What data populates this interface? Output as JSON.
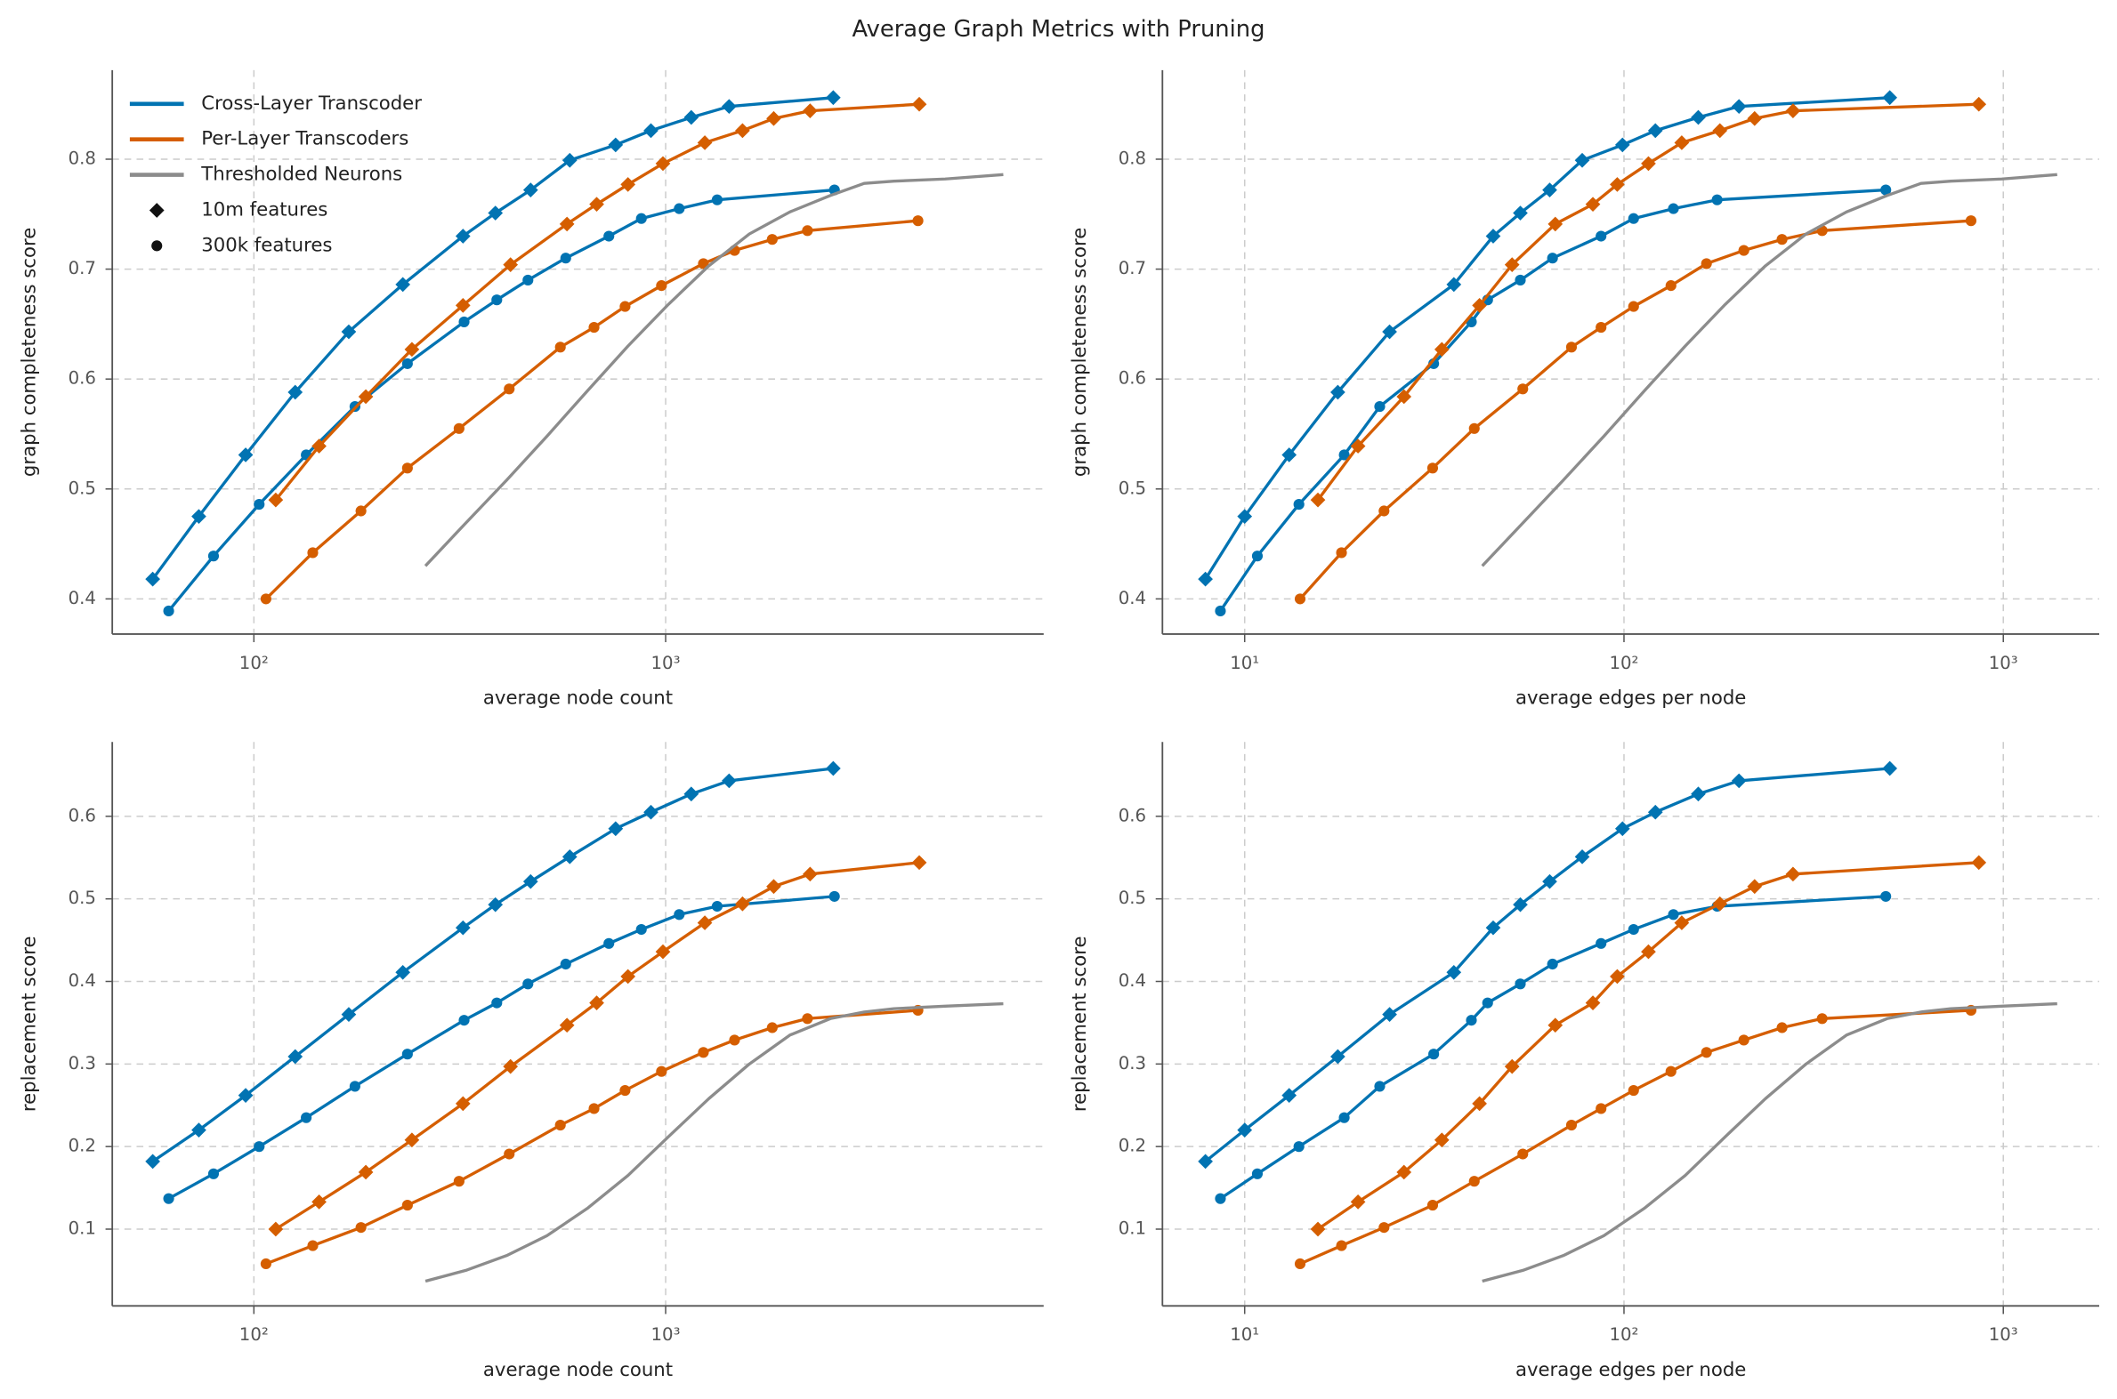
{
  "title": "Average Graph Metrics with Pruning",
  "chart_data": [
    {
      "type": "line",
      "xlabel": "average node count",
      "ylabel": "graph completeness score",
      "xscale": "log",
      "xlim": [
        45.3,
        8280
      ],
      "ylim": [
        0.368,
        0.881
      ],
      "xticks": [
        {
          "value": 100,
          "label": "10²"
        },
        {
          "value": 1000,
          "label": "10³"
        }
      ],
      "yticks": [
        0.4,
        0.5,
        0.6,
        0.7,
        0.8
      ],
      "grid": true,
      "legend": {
        "loc": "upper left",
        "entries": [
          {
            "label": "Cross-Layer Transcoder",
            "color": "#0173b2"
          },
          {
            "label": "Per-Layer Transcoders",
            "color": "#d55e00"
          },
          {
            "label": "Thresholded Neurons",
            "color": "#8c8c8c"
          },
          {
            "label": "10m features",
            "marker": "diamond"
          },
          {
            "label": "300k features",
            "marker": "circle"
          }
        ]
      },
      "series": [
        {
          "color": "#0173b2",
          "marker": "diamond",
          "x": [
            56.8,
            73.5,
            95.5,
            126,
            170,
            230,
            322,
            386,
            470,
            585,
            756,
            921,
            1154,
            1426,
            2553
          ],
          "values": [
            0.418,
            0.475,
            0.531,
            0.588,
            0.643,
            0.686,
            0.73,
            0.751,
            0.772,
            0.799,
            0.813,
            0.826,
            0.838,
            0.848,
            0.856
          ]
        },
        {
          "color": "#0173b2",
          "marker": "circle",
          "x": [
            62.1,
            79.8,
            103,
            134,
            176,
            236,
            324,
            389,
            463,
            572,
            728,
            873,
            1079,
            1334,
            2570
          ],
          "values": [
            0.389,
            0.439,
            0.486,
            0.531,
            0.575,
            0.614,
            0.652,
            0.672,
            0.69,
            0.71,
            0.73,
            0.746,
            0.755,
            0.763,
            0.772
          ]
        },
        {
          "color": "#d55e00",
          "marker": "diamond",
          "x": [
            113,
            144,
            187,
            242,
            322,
            420,
            576,
            680,
            810,
            985,
            1245,
            1537,
            1830,
            2243,
            4130
          ],
          "values": [
            0.49,
            0.539,
            0.584,
            0.627,
            0.667,
            0.704,
            0.741,
            0.759,
            0.777,
            0.796,
            0.815,
            0.826,
            0.837,
            0.844,
            0.85
          ]
        },
        {
          "color": "#d55e00",
          "marker": "circle",
          "x": [
            107,
            139,
            182,
            236,
            315,
            417,
            555,
            670,
            797,
            977,
            1235,
            1470,
            1815,
            2210,
            4100
          ],
          "values": [
            0.4,
            0.442,
            0.48,
            0.519,
            0.555,
            0.591,
            0.629,
            0.647,
            0.666,
            0.685,
            0.705,
            0.717,
            0.727,
            0.735,
            0.744
          ]
        },
        {
          "color": "#8c8c8c",
          "x": [
            261,
            327,
            411,
            515,
            645,
            810,
            1016,
            1273,
            1597,
            2003,
            2512,
            3035,
            3584,
            4773,
            6607
          ],
          "values": [
            0.43,
            0.469,
            0.508,
            0.548,
            0.589,
            0.63,
            0.668,
            0.703,
            0.732,
            0.752,
            0.767,
            0.778,
            0.78,
            0.782,
            0.786
          ]
        }
      ]
    },
    {
      "type": "line",
      "xlabel": "average edges per node",
      "ylabel": "graph completeness score",
      "xscale": "log",
      "xlim": [
        6.07,
        1790
      ],
      "ylim": [
        0.368,
        0.881
      ],
      "xticks": [
        {
          "value": 10,
          "label": "10¹"
        },
        {
          "value": 100,
          "label": "10²"
        },
        {
          "value": 1000,
          "label": "10³"
        }
      ],
      "yticks": [
        0.4,
        0.5,
        0.6,
        0.7,
        0.8
      ],
      "grid": true,
      "series": [
        {
          "color": "#0173b2",
          "marker": "diamond",
          "x": [
            7.88,
            10,
            13.1,
            17.6,
            24.1,
            35.6,
            45.2,
            53.3,
            63.7,
            77.6,
            99.1,
            121,
            157,
            201,
            502
          ],
          "values": [
            0.418,
            0.475,
            0.531,
            0.588,
            0.643,
            0.686,
            0.73,
            0.751,
            0.772,
            0.799,
            0.813,
            0.826,
            0.838,
            0.848,
            0.856
          ]
        },
        {
          "color": "#0173b2",
          "marker": "circle",
          "x": [
            8.63,
            10.8,
            13.9,
            18.3,
            22.7,
            31.5,
            39.6,
            43.7,
            53.3,
            64.8,
            87.0,
            106,
            135,
            176,
            490
          ],
          "values": [
            0.389,
            0.439,
            0.486,
            0.531,
            0.575,
            0.614,
            0.652,
            0.672,
            0.69,
            0.71,
            0.73,
            0.746,
            0.755,
            0.763,
            0.772
          ]
        },
        {
          "color": "#d55e00",
          "marker": "diamond",
          "x": [
            15.6,
            19.9,
            26.3,
            33.1,
            41.6,
            50.7,
            65.9,
            82.8,
            96.0,
            116,
            142,
            179,
            221,
            279,
            862
          ],
          "values": [
            0.49,
            0.539,
            0.584,
            0.627,
            0.667,
            0.704,
            0.741,
            0.759,
            0.777,
            0.796,
            0.815,
            0.826,
            0.837,
            0.844,
            0.85
          ]
        },
        {
          "color": "#d55e00",
          "marker": "circle",
          "x": [
            14.0,
            18.0,
            23.3,
            31.3,
            40.3,
            54.1,
            72.7,
            87.0,
            106,
            133,
            165,
            207,
            261,
            333,
            822
          ],
          "values": [
            0.4,
            0.442,
            0.48,
            0.519,
            0.555,
            0.591,
            0.629,
            0.647,
            0.666,
            0.685,
            0.705,
            0.717,
            0.727,
            0.735,
            0.744
          ]
        },
        {
          "color": "#8c8c8c",
          "x": [
            42.3,
            54.1,
            69.2,
            88.5,
            113,
            145,
            185,
            236,
            302,
            386,
            494,
            607,
            727,
            991,
            1387
          ],
          "values": [
            0.43,
            0.469,
            0.508,
            0.548,
            0.589,
            0.63,
            0.668,
            0.703,
            0.732,
            0.752,
            0.767,
            0.778,
            0.78,
            0.782,
            0.786
          ]
        }
      ]
    },
    {
      "type": "line",
      "xlabel": "average node count",
      "ylabel": "replacement score",
      "xscale": "log",
      "xlim": [
        45.3,
        8280
      ],
      "ylim": [
        0.007,
        0.69
      ],
      "xticks": [
        {
          "value": 100,
          "label": "10²"
        },
        {
          "value": 1000,
          "label": "10³"
        }
      ],
      "yticks": [
        0.1,
        0.2,
        0.3,
        0.4,
        0.5,
        0.6
      ],
      "grid": true,
      "series": [
        {
          "color": "#0173b2",
          "marker": "diamond",
          "x": [
            56.8,
            73.5,
            95.5,
            126,
            170,
            230,
            322,
            386,
            470,
            585,
            756,
            921,
            1154,
            1426,
            2553
          ],
          "values": [
            0.182,
            0.22,
            0.262,
            0.309,
            0.36,
            0.411,
            0.465,
            0.493,
            0.521,
            0.551,
            0.585,
            0.605,
            0.627,
            0.643,
            0.658
          ]
        },
        {
          "color": "#0173b2",
          "marker": "circle",
          "x": [
            62.1,
            79.8,
            103,
            134,
            176,
            236,
            324,
            389,
            463,
            572,
            728,
            873,
            1079,
            1334,
            2570
          ],
          "values": [
            0.137,
            0.167,
            0.2,
            0.235,
            0.273,
            0.312,
            0.353,
            0.374,
            0.397,
            0.421,
            0.446,
            0.463,
            0.481,
            0.491,
            0.503
          ]
        },
        {
          "color": "#d55e00",
          "marker": "diamond",
          "x": [
            113,
            144,
            187,
            242,
            322,
            420,
            576,
            680,
            810,
            985,
            1245,
            1537,
            1830,
            2243,
            4130
          ],
          "values": [
            0.1,
            0.133,
            0.169,
            0.208,
            0.252,
            0.297,
            0.347,
            0.374,
            0.406,
            0.436,
            0.471,
            0.494,
            0.515,
            0.53,
            0.544
          ]
        },
        {
          "color": "#d55e00",
          "marker": "circle",
          "x": [
            107,
            139,
            182,
            236,
            315,
            417,
            555,
            670,
            797,
            977,
            1235,
            1470,
            1815,
            2210,
            4100
          ],
          "values": [
            0.058,
            0.08,
            0.102,
            0.129,
            0.158,
            0.191,
            0.226,
            0.246,
            0.268,
            0.291,
            0.314,
            0.329,
            0.344,
            0.355,
            0.365
          ]
        },
        {
          "color": "#8c8c8c",
          "x": [
            261,
            327,
            411,
            515,
            645,
            810,
            1016,
            1273,
            1597,
            2003,
            2512,
            3035,
            3584,
            4773,
            6607
          ],
          "values": [
            0.037,
            0.05,
            0.068,
            0.092,
            0.125,
            0.165,
            0.212,
            0.258,
            0.3,
            0.335,
            0.355,
            0.363,
            0.367,
            0.37,
            0.373
          ]
        }
      ]
    },
    {
      "type": "line",
      "xlabel": "average edges per node",
      "ylabel": "replacement score",
      "xscale": "log",
      "xlim": [
        6.07,
        1790
      ],
      "ylim": [
        0.007,
        0.69
      ],
      "xticks": [
        {
          "value": 10,
          "label": "10¹"
        },
        {
          "value": 100,
          "label": "10²"
        },
        {
          "value": 1000,
          "label": "10³"
        }
      ],
      "yticks": [
        0.1,
        0.2,
        0.3,
        0.4,
        0.5,
        0.6
      ],
      "grid": true,
      "series": [
        {
          "color": "#0173b2",
          "marker": "diamond",
          "x": [
            7.88,
            10,
            13.1,
            17.6,
            24.1,
            35.6,
            45.2,
            53.3,
            63.7,
            77.6,
            99.1,
            121,
            157,
            201,
            502
          ],
          "values": [
            0.182,
            0.22,
            0.262,
            0.309,
            0.36,
            0.411,
            0.465,
            0.493,
            0.521,
            0.551,
            0.585,
            0.605,
            0.627,
            0.643,
            0.658
          ]
        },
        {
          "color": "#0173b2",
          "marker": "circle",
          "x": [
            8.63,
            10.8,
            13.9,
            18.3,
            22.7,
            31.5,
            39.6,
            43.7,
            53.3,
            64.8,
            87.0,
            106,
            135,
            176,
            490
          ],
          "values": [
            0.137,
            0.167,
            0.2,
            0.235,
            0.273,
            0.312,
            0.353,
            0.374,
            0.397,
            0.421,
            0.446,
            0.463,
            0.481,
            0.491,
            0.503
          ]
        },
        {
          "color": "#d55e00",
          "marker": "diamond",
          "x": [
            15.6,
            19.9,
            26.3,
            33.1,
            41.6,
            50.7,
            65.9,
            82.8,
            96.0,
            116,
            142,
            179,
            221,
            279,
            862
          ],
          "values": [
            0.1,
            0.133,
            0.169,
            0.208,
            0.252,
            0.297,
            0.347,
            0.374,
            0.406,
            0.436,
            0.471,
            0.494,
            0.515,
            0.53,
            0.544
          ]
        },
        {
          "color": "#d55e00",
          "marker": "circle",
          "x": [
            14.0,
            18.0,
            23.3,
            31.3,
            40.3,
            54.1,
            72.7,
            87.0,
            106,
            133,
            165,
            207,
            261,
            333,
            822
          ],
          "values": [
            0.058,
            0.08,
            0.102,
            0.129,
            0.158,
            0.191,
            0.226,
            0.246,
            0.268,
            0.291,
            0.314,
            0.329,
            0.344,
            0.355,
            0.365
          ]
        },
        {
          "color": "#8c8c8c",
          "x": [
            42.3,
            54.1,
            69.2,
            88.5,
            113,
            145,
            185,
            236,
            302,
            386,
            494,
            607,
            727,
            991,
            1387
          ],
          "values": [
            0.037,
            0.05,
            0.068,
            0.092,
            0.125,
            0.165,
            0.212,
            0.258,
            0.3,
            0.335,
            0.355,
            0.363,
            0.367,
            0.37,
            0.373
          ]
        }
      ]
    }
  ]
}
